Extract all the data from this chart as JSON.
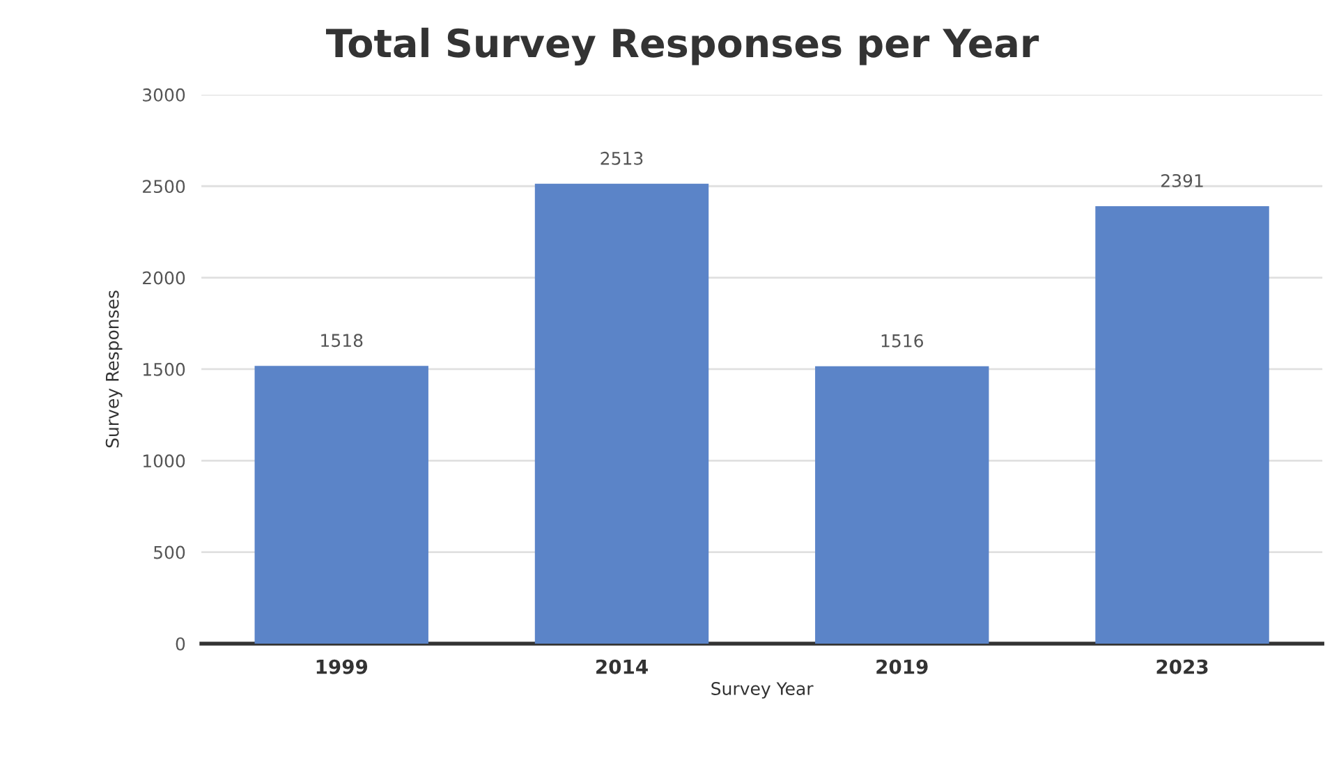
{
  "chart_data": {
    "type": "bar",
    "title": "Total Survey Responses per Year",
    "xlabel": "Survey Year",
    "ylabel": "Survey Responses",
    "categories": [
      "1999",
      "2014",
      "2019",
      "2023"
    ],
    "values": [
      1518,
      2513,
      1516,
      2391
    ],
    "color": "#5b84c8",
    "ylim": [
      0,
      3000
    ],
    "yticks": [
      0,
      500,
      1000,
      1500,
      2000,
      2500,
      3000
    ],
    "grid": "y",
    "data_labels": true
  }
}
